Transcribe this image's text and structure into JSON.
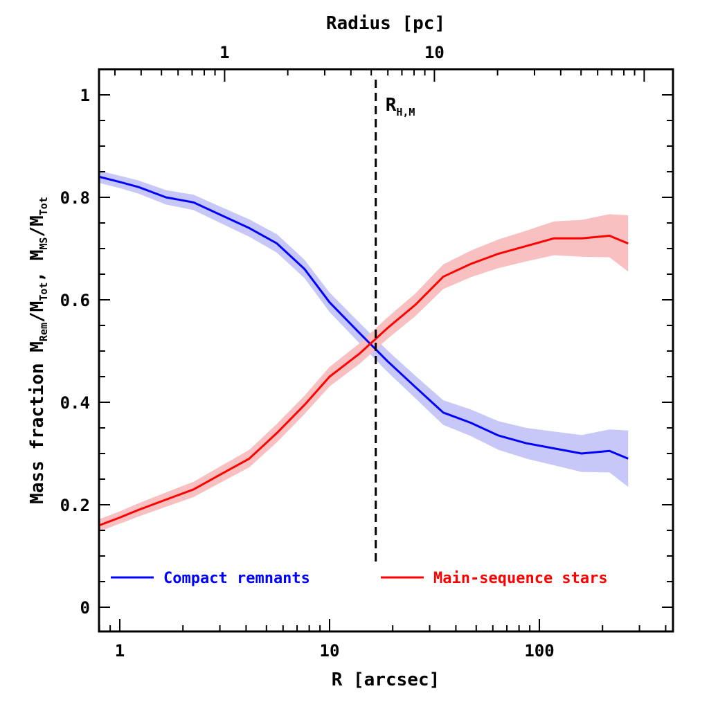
{
  "chart_data": {
    "type": "line",
    "title": "",
    "xlabel": "R [arcsec]",
    "xscale": "log",
    "xlim": [
      0.8,
      400
    ],
    "xticks": [
      1,
      10,
      100
    ],
    "xtick_labels": [
      "1",
      "10",
      "100"
    ],
    "top_axis": {
      "label": "Radius [pc]",
      "scale": "log",
      "ticks": [
        1,
        10
      ],
      "tick_labels": [
        "1",
        "10"
      ],
      "arcsec_per_pc": 3.16
    },
    "ylabel_parts": {
      "prefix": "Mass fraction  M",
      "sub1": "Rem",
      "mid1": "/M",
      "sub2": "Tot",
      "mid2": ",  M",
      "sub3": "MS",
      "mid3": "/M",
      "sub4": "Tot"
    },
    "ylim": [
      -0.05,
      1.05
    ],
    "yticks": [
      0,
      0.2,
      0.4,
      0.6,
      0.8,
      1
    ],
    "ytick_labels": [
      "0",
      "0.2",
      "0.4",
      "0.6",
      "0.8",
      "1"
    ],
    "grid": false,
    "legend_position": "bottom",
    "x": [
      0.8,
      1.0,
      1.23,
      1.66,
      2.25,
      3.05,
      4.14,
      5.61,
      7.6,
      10.0,
      13.9,
      18.9,
      25.6,
      34.8,
      47.1,
      63.9,
      86.7,
      117.5,
      159,
      216,
      265
    ],
    "series": [
      {
        "name": "Compact remnants",
        "color": "#0000ff",
        "band_color": "#c8c8f8",
        "values": [
          0.84,
          0.83,
          0.82,
          0.8,
          0.79,
          0.765,
          0.74,
          0.71,
          0.66,
          0.595,
          0.535,
          0.48,
          0.43,
          0.38,
          0.36,
          0.335,
          0.32,
          0.31,
          0.3,
          0.305,
          0.29
        ],
        "band_halfwidth": [
          0.012,
          0.012,
          0.013,
          0.014,
          0.015,
          0.016,
          0.017,
          0.018,
          0.018,
          0.019,
          0.02,
          0.021,
          0.022,
          0.024,
          0.026,
          0.028,
          0.03,
          0.033,
          0.036,
          0.042,
          0.055
        ]
      },
      {
        "name": "Main-sequence stars",
        "color": "#ff0000",
        "band_color": "#f8c0c0",
        "values": [
          0.16,
          0.175,
          0.19,
          0.21,
          0.23,
          0.26,
          0.29,
          0.34,
          0.395,
          0.45,
          0.495,
          0.545,
          0.59,
          0.645,
          0.67,
          0.69,
          0.705,
          0.72,
          0.72,
          0.725,
          0.71
        ],
        "band_halfwidth": [
          0.012,
          0.012,
          0.013,
          0.014,
          0.015,
          0.016,
          0.017,
          0.018,
          0.018,
          0.019,
          0.02,
          0.021,
          0.022,
          0.024,
          0.026,
          0.028,
          0.03,
          0.033,
          0.036,
          0.042,
          0.055
        ]
      }
    ],
    "annotations": [
      {
        "type": "vline",
        "x": 16.6,
        "style": "dashed",
        "label_main": "R",
        "label_sub": "H,M",
        "y_range": [
          0.1,
          1.05
        ]
      }
    ]
  }
}
